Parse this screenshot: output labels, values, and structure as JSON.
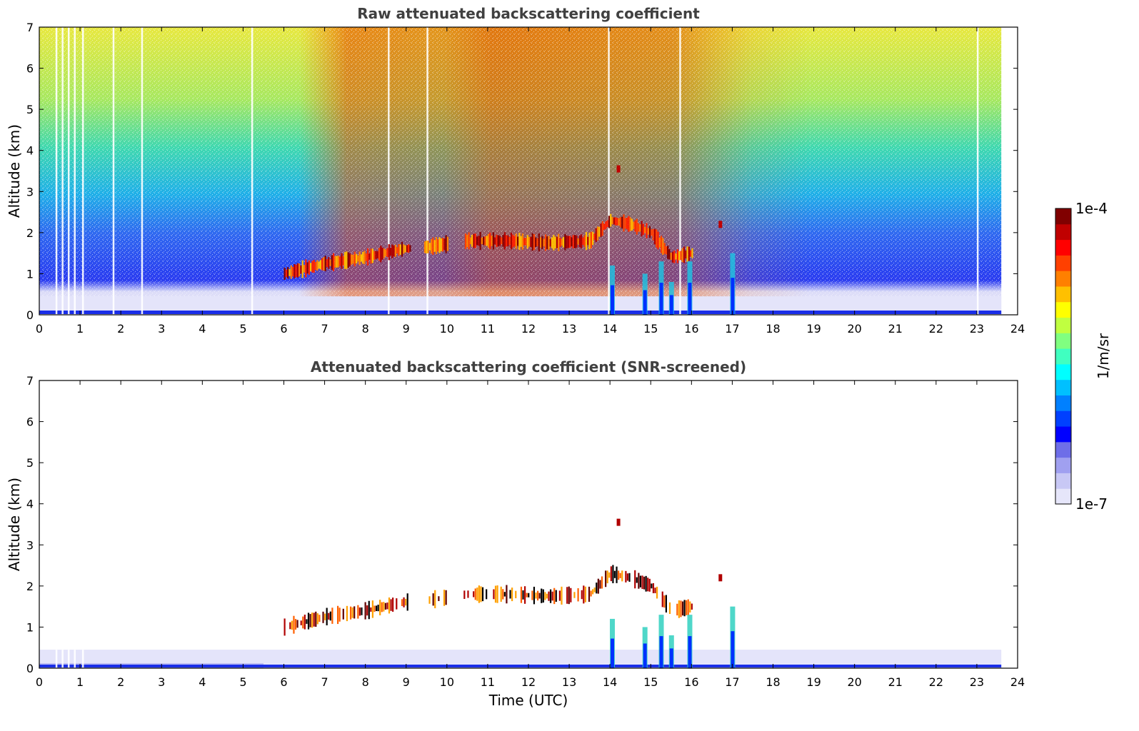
{
  "chart_data": [
    {
      "type": "heatmap",
      "title": "Raw attenuated backscattering coefficient",
      "xlabel": "",
      "ylabel": "Altitude (km)",
      "xlim": [
        0,
        24
      ],
      "ylim": [
        0,
        7
      ],
      "xticks": [
        0,
        1,
        2,
        3,
        4,
        5,
        6,
        7,
        8,
        9,
        10,
        11,
        12,
        13,
        14,
        15,
        16,
        17,
        18,
        19,
        20,
        21,
        22,
        23,
        24
      ],
      "yticks": [
        0,
        1,
        2,
        3,
        4,
        5,
        6,
        7
      ],
      "data_end_time": 23.6,
      "cloud_layer": {
        "time": [
          6.0,
          7.0,
          8.0,
          8.9,
          9.5,
          10.5,
          11.5,
          12.5,
          13.5,
          14.0,
          14.5,
          15.0,
          15.5,
          16.0
        ],
        "altitude": [
          1.0,
          1.25,
          1.4,
          1.6,
          1.65,
          1.8,
          1.8,
          1.75,
          1.8,
          2.3,
          2.2,
          2.0,
          1.4,
          1.5
        ]
      },
      "precip_shafts": [
        {
          "time": 14.05,
          "top": 1.2
        },
        {
          "time": 14.85,
          "top": 1.0
        },
        {
          "time": 15.25,
          "top": 1.3
        },
        {
          "time": 15.5,
          "top": 0.8
        },
        {
          "time": 15.95,
          "top": 1.3
        },
        {
          "time": 17.0,
          "top": 1.5
        }
      ],
      "isolated_features": [
        {
          "time": 14.2,
          "altitude": 3.55
        },
        {
          "time": 16.7,
          "altitude": 2.2
        }
      ]
    },
    {
      "type": "heatmap",
      "title": "Attenuated backscattering coefficient (SNR-screened)",
      "xlabel": "Time (UTC)",
      "ylabel": "Altitude (km)",
      "xlim": [
        0,
        24
      ],
      "ylim": [
        0,
        7
      ],
      "xticks": [
        0,
        1,
        2,
        3,
        4,
        5,
        6,
        7,
        8,
        9,
        10,
        11,
        12,
        13,
        14,
        15,
        16,
        17,
        18,
        19,
        20,
        21,
        22,
        23,
        24
      ],
      "yticks": [
        0,
        1,
        2,
        3,
        4,
        5,
        6,
        7
      ],
      "data_end_time": 23.6,
      "screened_layer_top": 0.45
    }
  ],
  "colorbar": {
    "label": "1/m/sr",
    "max_label": "1e-4",
    "min_label": "1e-7",
    "colors": [
      "#e6e6fa",
      "#c8c8f5",
      "#a0a0f0",
      "#6e6ee8",
      "#0000ff",
      "#0040ff",
      "#0080ff",
      "#00c0ff",
      "#00ffff",
      "#40ffc0",
      "#80ff80",
      "#c0ff40",
      "#ffff00",
      "#ffc000",
      "#ff8000",
      "#ff4000",
      "#ff0000",
      "#c00000",
      "#800000"
    ]
  }
}
